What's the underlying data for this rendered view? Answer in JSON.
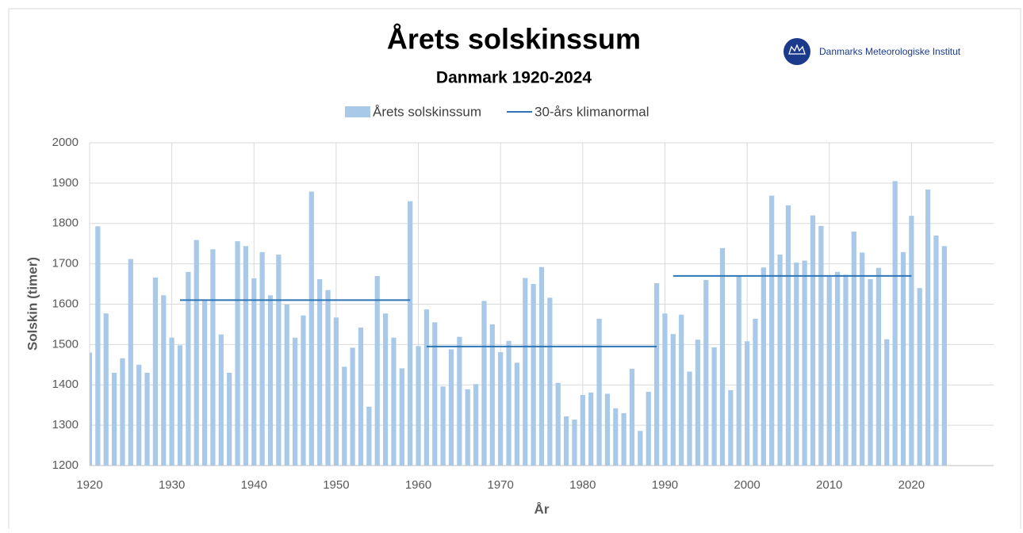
{
  "chart_data": {
    "type": "bar",
    "title": "Årets solskinssum",
    "subtitle": "Danmark 1920-2024",
    "logo_text": "Danmarks Meteorologiske Institut",
    "x_label": "År",
    "y_label": "Solskin (timer)",
    "xlim": [
      1920,
      2030
    ],
    "xticks": [
      1920,
      1930,
      1940,
      1950,
      1960,
      1970,
      1980,
      1990,
      2000,
      2010,
      2020
    ],
    "ylim": [
      1200,
      2000
    ],
    "yticks": [
      1200,
      1300,
      1400,
      1500,
      1600,
      1700,
      1800,
      1900,
      2000
    ],
    "grid": true,
    "legend": "top",
    "series": [
      {
        "name": "Årets solskinssum",
        "type": "bar",
        "color": "#a9c9e9",
        "x": [
          1920,
          1921,
          1922,
          1923,
          1924,
          1925,
          1926,
          1927,
          1928,
          1929,
          1930,
          1931,
          1932,
          1933,
          1934,
          1935,
          1936,
          1937,
          1938,
          1939,
          1940,
          1941,
          1942,
          1943,
          1944,
          1945,
          1946,
          1947,
          1948,
          1949,
          1950,
          1951,
          1952,
          1953,
          1954,
          1955,
          1956,
          1957,
          1958,
          1959,
          1960,
          1961,
          1962,
          1963,
          1964,
          1965,
          1966,
          1967,
          1968,
          1969,
          1970,
          1971,
          1972,
          1973,
          1974,
          1975,
          1976,
          1977,
          1978,
          1979,
          1980,
          1981,
          1982,
          1983,
          1984,
          1985,
          1986,
          1987,
          1988,
          1989,
          1990,
          1991,
          1992,
          1993,
          1994,
          1995,
          1996,
          1997,
          1998,
          1999,
          2000,
          2001,
          2002,
          2003,
          2004,
          2005,
          2006,
          2007,
          2008,
          2009,
          2010,
          2011,
          2012,
          2013,
          2014,
          2015,
          2016,
          2017,
          2018,
          2019,
          2020,
          2021,
          2022,
          2023,
          2024
        ],
        "values": [
          1480,
          1793,
          1577,
          1430,
          1466,
          1712,
          1450,
          1430,
          1666,
          1622,
          1517,
          1498,
          1680,
          1759,
          1608,
          1736,
          1525,
          1430,
          1756,
          1744,
          1664,
          1729,
          1622,
          1723,
          1599,
          1517,
          1572,
          1879,
          1662,
          1635,
          1567,
          1445,
          1492,
          1542,
          1346,
          1670,
          1577,
          1517,
          1441,
          1855,
          1496,
          1587,
          1555,
          1396,
          1488,
          1519,
          1389,
          1402,
          1608,
          1550,
          1481,
          1509,
          1455,
          1665,
          1650,
          1692,
          1616,
          1405,
          1322,
          1314,
          1375,
          1381,
          1564,
          1378,
          1342,
          1330,
          1440,
          1286,
          1383,
          1652,
          1577,
          1526,
          1574,
          1433,
          1512,
          1660,
          1493,
          1739,
          1387,
          1670,
          1508,
          1564,
          1691,
          1869,
          1723,
          1845,
          1703,
          1708,
          1820,
          1794,
          1668,
          1680,
          1673,
          1780,
          1728,
          1662,
          1690,
          1513,
          1905,
          1729,
          1819,
          1640,
          1884,
          1770,
          1744
        ]
      },
      {
        "name": "30-års klimanormal",
        "type": "line",
        "color": "#2e75b6",
        "x": [
          1931,
          1959,
          1960,
          1961,
          1989,
          1990,
          1991,
          2020
        ],
        "values": [
          1610,
          1610,
          null,
          1495,
          1495,
          null,
          1670,
          1670
        ]
      }
    ]
  }
}
